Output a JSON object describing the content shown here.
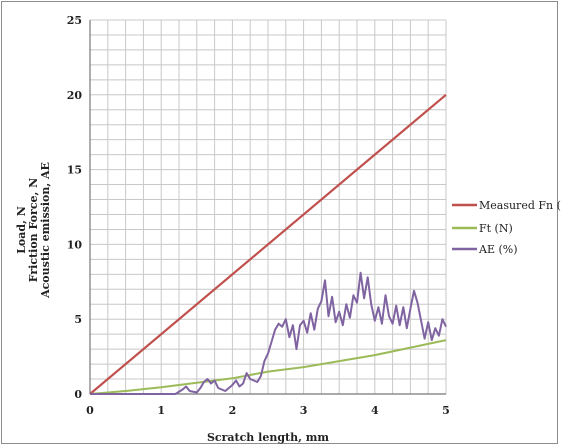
{
  "chart_data": {
    "type": "line",
    "title": "",
    "xlabel": "Scratch length, mm",
    "ylabel_lines": [
      "Load, N",
      "Friction Force, N",
      "Acoustic emission, AE"
    ],
    "xlim": [
      0,
      5
    ],
    "ylim": [
      0,
      25
    ],
    "x_ticks": [
      "0",
      "1",
      "2",
      "3",
      "4",
      "5"
    ],
    "y_ticks": [
      "0",
      "5",
      "10",
      "15",
      "20",
      "25"
    ],
    "grid": true,
    "legend_position": "right",
    "series": [
      {
        "name": "Measured Fn (N)",
        "color": "#c0504d",
        "points": [
          [
            0,
            0
          ],
          [
            5,
            20
          ]
        ]
      },
      {
        "name": "Ft (N)",
        "color": "#9bbb59",
        "points": [
          [
            0,
            0
          ],
          [
            0.5,
            0.2
          ],
          [
            1,
            0.45
          ],
          [
            1.5,
            0.75
          ],
          [
            2,
            1.05
          ],
          [
            2.5,
            1.5
          ],
          [
            3,
            1.8
          ],
          [
            3.5,
            2.2
          ],
          [
            4,
            2.6
          ],
          [
            4.5,
            3.1
          ],
          [
            5,
            3.6
          ]
        ]
      },
      {
        "name": "AE (%)",
        "color": "#8064a2",
        "points": [
          [
            0,
            0
          ],
          [
            1.2,
            0
          ],
          [
            1.3,
            0.3
          ],
          [
            1.35,
            0.5
          ],
          [
            1.4,
            0.2
          ],
          [
            1.5,
            0.1
          ],
          [
            1.55,
            0.4
          ],
          [
            1.6,
            0.8
          ],
          [
            1.65,
            1.0
          ],
          [
            1.7,
            0.7
          ],
          [
            1.75,
            0.9
          ],
          [
            1.8,
            0.4
          ],
          [
            1.9,
            0.2
          ],
          [
            2.0,
            0.6
          ],
          [
            2.05,
            0.9
          ],
          [
            2.1,
            0.5
          ],
          [
            2.15,
            0.7
          ],
          [
            2.2,
            1.4
          ],
          [
            2.25,
            1.0
          ],
          [
            2.3,
            0.9
          ],
          [
            2.35,
            0.8
          ],
          [
            2.4,
            1.2
          ],
          [
            2.45,
            2.2
          ],
          [
            2.5,
            2.7
          ],
          [
            2.55,
            3.5
          ],
          [
            2.6,
            4.3
          ],
          [
            2.65,
            4.7
          ],
          [
            2.7,
            4.5
          ],
          [
            2.75,
            5.0
          ],
          [
            2.8,
            3.8
          ],
          [
            2.85,
            4.6
          ],
          [
            2.9,
            3.0
          ],
          [
            2.95,
            4.6
          ],
          [
            3.0,
            4.9
          ],
          [
            3.05,
            4.1
          ],
          [
            3.1,
            5.4
          ],
          [
            3.15,
            4.3
          ],
          [
            3.2,
            5.7
          ],
          [
            3.25,
            6.2
          ],
          [
            3.3,
            7.6
          ],
          [
            3.35,
            5.2
          ],
          [
            3.4,
            6.5
          ],
          [
            3.45,
            4.8
          ],
          [
            3.5,
            5.5
          ],
          [
            3.55,
            4.6
          ],
          [
            3.6,
            6.0
          ],
          [
            3.65,
            5.1
          ],
          [
            3.7,
            6.6
          ],
          [
            3.75,
            6.1
          ],
          [
            3.8,
            8.1
          ],
          [
            3.85,
            6.4
          ],
          [
            3.9,
            7.8
          ],
          [
            3.95,
            6.0
          ],
          [
            4.0,
            4.9
          ],
          [
            4.05,
            5.8
          ],
          [
            4.1,
            4.7
          ],
          [
            4.15,
            6.6
          ],
          [
            4.2,
            5.2
          ],
          [
            4.25,
            4.7
          ],
          [
            4.3,
            5.9
          ],
          [
            4.35,
            4.6
          ],
          [
            4.4,
            5.8
          ],
          [
            4.45,
            4.4
          ],
          [
            4.5,
            5.7
          ],
          [
            4.55,
            6.9
          ],
          [
            4.6,
            6.1
          ],
          [
            4.65,
            4.9
          ],
          [
            4.7,
            3.7
          ],
          [
            4.75,
            4.8
          ],
          [
            4.8,
            3.6
          ],
          [
            4.85,
            4.4
          ],
          [
            4.9,
            3.9
          ],
          [
            4.95,
            5.0
          ],
          [
            5.0,
            4.5
          ]
        ]
      }
    ]
  }
}
